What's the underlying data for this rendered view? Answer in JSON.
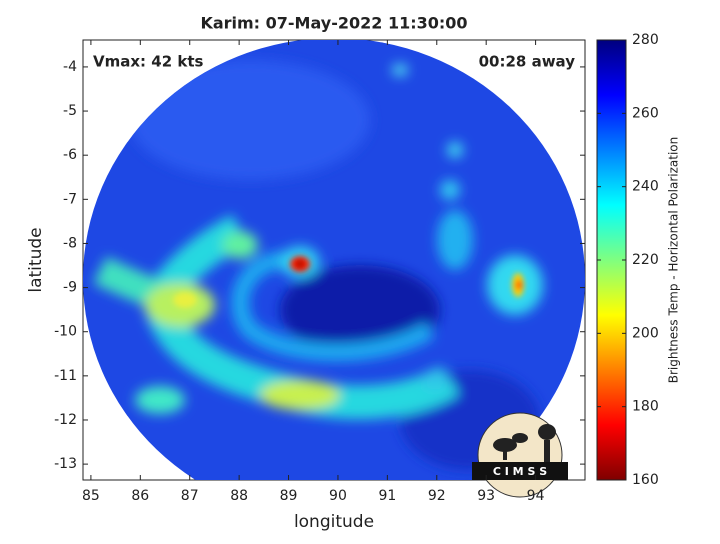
{
  "chart_data": {
    "type": "image",
    "title": "Karim: 07-May-2022 11:30:00",
    "xlabel": "longitude",
    "ylabel": "latitude",
    "xlim": [
      84.84,
      95.0
    ],
    "xticks": [
      85,
      86,
      87,
      88,
      89,
      90,
      91,
      92,
      93,
      94
    ],
    "ylim": [
      -13.36,
      -3.39
    ],
    "yticks": [
      -13,
      -12,
      -11,
      -10,
      -9,
      -8,
      -7,
      -6,
      -5,
      -4
    ],
    "annotations": [
      "Vmax: 42 kts",
      "00:28 away"
    ],
    "colorbar": {
      "label": "Brightness Temp - Horizontal Polarization",
      "lim": [
        160,
        280
      ],
      "ticks": [
        160,
        180,
        200,
        220,
        240,
        260,
        280
      ],
      "colormap": "jet"
    },
    "logo_text": "C I M S S"
  }
}
